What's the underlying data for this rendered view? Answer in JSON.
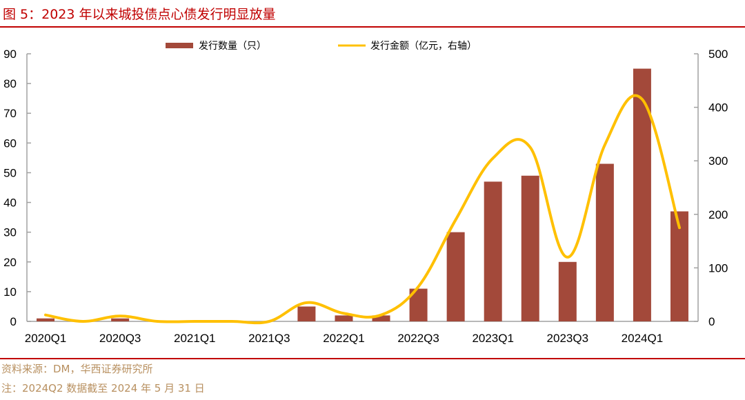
{
  "title": "图 5：2023 年以来城投债点心债发行明显放量",
  "source": "资料来源：DM，华西证券研究所",
  "note": "注：2024Q2 数据截至 2024 年 5 月 31 日",
  "colors": {
    "bar": "#a3493a",
    "line": "#ffc000",
    "title": "#c00000",
    "source": "#b89060",
    "axis": "#a0a0a0"
  },
  "chart_data": {
    "type": "bar+line",
    "title": "图 5：2023 年以来城投债点心债发行明显放量",
    "categories": [
      "2020Q1",
      "2020Q2",
      "2020Q3",
      "2020Q4",
      "2021Q1",
      "2021Q2",
      "2021Q3",
      "2021Q4",
      "2022Q1",
      "2022Q2",
      "2022Q3",
      "2022Q4",
      "2023Q1",
      "2023Q2",
      "2023Q3",
      "2023Q4",
      "2024Q1",
      "2024Q2"
    ],
    "x_tick_labels": [
      "2020Q1",
      "2020Q3",
      "2021Q1",
      "2021Q3",
      "2022Q1",
      "2022Q3",
      "2023Q1",
      "2023Q3",
      "2024Q1"
    ],
    "series": [
      {
        "name": "发行数量（只）",
        "type": "bar",
        "axis": "left",
        "values": [
          1,
          0,
          1,
          0,
          0,
          0,
          0,
          5,
          2,
          2,
          11,
          30,
          47,
          49,
          20,
          53,
          85,
          37
        ]
      },
      {
        "name": "发行金额（亿元，右轴）",
        "type": "line",
        "axis": "right",
        "smooth": true,
        "values": [
          12,
          0,
          10,
          0,
          0,
          0,
          0,
          35,
          15,
          12,
          65,
          190,
          305,
          325,
          120,
          330,
          415,
          175
        ]
      }
    ],
    "y_left": {
      "range": [
        0,
        90
      ],
      "ticks": [
        0,
        10,
        20,
        30,
        40,
        50,
        60,
        70,
        80,
        90
      ]
    },
    "y_right": {
      "range": [
        0,
        500
      ],
      "ticks": [
        0,
        100,
        200,
        300,
        400,
        500
      ]
    },
    "legend": {
      "placement": "top",
      "entries": [
        "发行数量（只）",
        "发行金额（亿元，右轴）"
      ]
    },
    "grid": false
  }
}
